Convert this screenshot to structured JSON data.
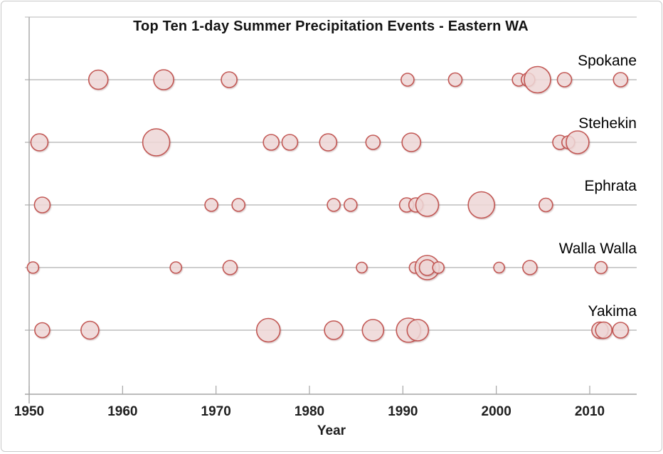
{
  "chart_data": {
    "type": "bubble",
    "title": "Top Ten 1-day Summer Precipitation Events - Eastern WA",
    "xlabel": "Year",
    "x_range": [
      1950,
      2015
    ],
    "x_ticks": [
      1950,
      1960,
      1970,
      1980,
      1990,
      2000,
      2010
    ],
    "x_tick_labels": [
      "1950",
      "1960",
      "1970",
      "1980",
      "1990",
      "2000",
      "2010"
    ],
    "grid": "horizontal row line per city, vertical axis at 1950, top border line",
    "legend_position": "series name printed at right end above each row",
    "bubble_fill": "#F2DCDB",
    "bubble_stroke": "#C0504D",
    "gridline_color": "#b0b0b0",
    "axis_color": "#a6a6a6",
    "note": "Bubble size encodes precipitation amount (no numeric labels shown); r is rendered radius in px",
    "series": [
      {
        "name": "Spokane",
        "points": [
          {
            "year": 1957.4,
            "r": 13.5
          },
          {
            "year": 1964.4,
            "r": 14
          },
          {
            "year": 1971.4,
            "r": 11
          },
          {
            "year": 1990.5,
            "r": 9
          },
          {
            "year": 1995.6,
            "r": 9.5
          },
          {
            "year": 2002.4,
            "r": 9
          },
          {
            "year": 2003.4,
            "r": 9.5
          },
          {
            "year": 2004.4,
            "r": 18.5
          },
          {
            "year": 2007.3,
            "r": 10
          },
          {
            "year": 2013.3,
            "r": 10
          }
        ]
      },
      {
        "name": "Stehekin",
        "points": [
          {
            "year": 1951.1,
            "r": 12
          },
          {
            "year": 1963.6,
            "r": 19
          },
          {
            "year": 1975.9,
            "r": 11
          },
          {
            "year": 1977.9,
            "r": 11
          },
          {
            "year": 1982.0,
            "r": 12
          },
          {
            "year": 1986.8,
            "r": 10
          },
          {
            "year": 1990.9,
            "r": 13
          },
          {
            "year": 2006.8,
            "r": 10
          },
          {
            "year": 2007.7,
            "r": 9
          },
          {
            "year": 2008.7,
            "r": 16
          }
        ]
      },
      {
        "name": "Ephrata",
        "points": [
          {
            "year": 1951.4,
            "r": 11
          },
          {
            "year": 1969.5,
            "r": 9
          },
          {
            "year": 1972.4,
            "r": 9
          },
          {
            "year": 1982.6,
            "r": 9
          },
          {
            "year": 1984.4,
            "r": 9
          },
          {
            "year": 1990.4,
            "r": 10
          },
          {
            "year": 1991.4,
            "r": 10
          },
          {
            "year": 1992.6,
            "r": 16
          },
          {
            "year": 1998.4,
            "r": 18.5
          },
          {
            "year": 2005.3,
            "r": 9.5
          }
        ]
      },
      {
        "name": "Walla Walla",
        "points": [
          {
            "year": 1950.4,
            "r": 8
          },
          {
            "year": 1965.7,
            "r": 8
          },
          {
            "year": 1971.5,
            "r": 10
          },
          {
            "year": 1985.6,
            "r": 7.5
          },
          {
            "year": 1991.3,
            "r": 8
          },
          {
            "year": 1992.6,
            "r": 17
          },
          {
            "year": 1992.6,
            "r": 11
          },
          {
            "year": 1993.8,
            "r": 8
          },
          {
            "year": 2000.3,
            "r": 7.5
          },
          {
            "year": 2003.6,
            "r": 10
          },
          {
            "year": 2011.2,
            "r": 8.5
          }
        ]
      },
      {
        "name": "Yakima",
        "points": [
          {
            "year": 1951.4,
            "r": 10.5
          },
          {
            "year": 1956.5,
            "r": 12.5
          },
          {
            "year": 1975.6,
            "r": 16.5
          },
          {
            "year": 1982.6,
            "r": 13
          },
          {
            "year": 1986.8,
            "r": 15
          },
          {
            "year": 1990.6,
            "r": 17
          },
          {
            "year": 1991.6,
            "r": 15
          },
          {
            "year": 2011.1,
            "r": 11.5
          },
          {
            "year": 2011.5,
            "r": 11.5
          },
          {
            "year": 2013.3,
            "r": 11
          }
        ]
      }
    ]
  }
}
